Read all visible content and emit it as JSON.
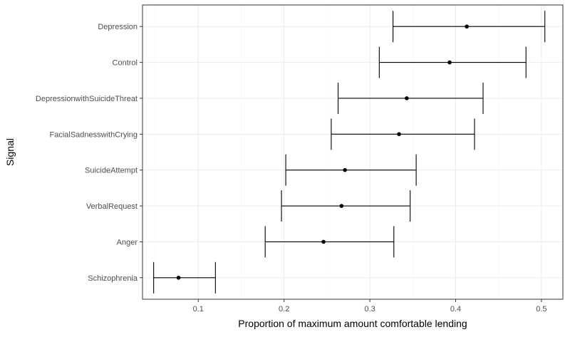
{
  "chart_data": {
    "type": "scatter",
    "style": "point-with-horizontal-error-bars",
    "xlabel": "Proportion of maximum amount comfortable lending",
    "ylabel": "Signal",
    "xlim": [
      0.035,
      0.525
    ],
    "x_ticks": [
      0.1,
      0.2,
      0.3,
      0.4,
      0.5
    ],
    "x_tick_labels": [
      "0.1",
      "0.2",
      "0.3",
      "0.4",
      "0.5"
    ],
    "grid": true,
    "categories": [
      "Depression",
      "Control",
      "DepressionwithSuicideThreat",
      "FacialSadnesswithCrying",
      "SuicideAttempt",
      "VerbalRequest",
      "Anger",
      "Schizophrenia"
    ],
    "values": [
      0.413,
      0.393,
      0.343,
      0.334,
      0.271,
      0.267,
      0.246,
      0.077
    ],
    "lower": [
      0.327,
      0.311,
      0.263,
      0.255,
      0.202,
      0.197,
      0.178,
      0.048
    ],
    "upper": [
      0.504,
      0.482,
      0.432,
      0.422,
      0.354,
      0.347,
      0.328,
      0.12
    ]
  },
  "colors": {
    "point": "#000000",
    "errorbar": "#000000",
    "grid_major": "#ebebeb",
    "grid_minor": "#f5f5f5",
    "panel_border": "#333333"
  }
}
